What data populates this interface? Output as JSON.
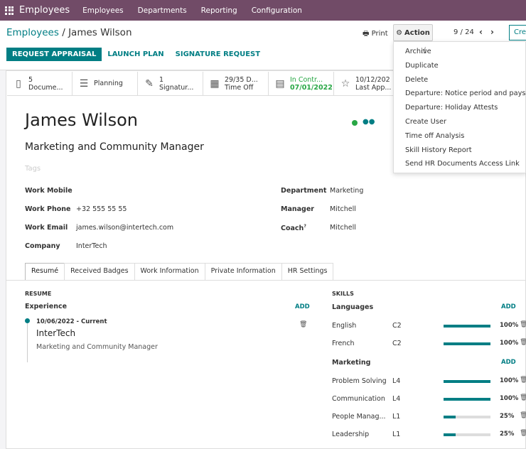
{
  "navbar": {
    "app_name": "Employees",
    "menus": [
      "Employees",
      "Departments",
      "Reporting",
      "Configuration"
    ]
  },
  "breadcrumb": {
    "parent": "Employees",
    "separator": "/",
    "current": "James Wilson"
  },
  "toolbar": {
    "print_label": "Print",
    "action_label": "Action",
    "pager": "9 / 24",
    "create_label": "Cre"
  },
  "buttons": {
    "request_appraisal": "REQUEST APPRAISAL",
    "launch_plan": "LAUNCH PLAN",
    "signature_request": "SIGNATURE REQUEST"
  },
  "smart_buttons": [
    {
      "icon": "document-icon",
      "line1": "5",
      "line2": "Docume..."
    },
    {
      "icon": "planning-icon",
      "line1": "Planning",
      "line2": ""
    },
    {
      "icon": "pen-icon",
      "line1": "1",
      "line2": "Signatur..."
    },
    {
      "icon": "calendar-icon",
      "line1": "29/35 D...",
      "line2": "Time Off"
    },
    {
      "icon": "book-icon",
      "line1": "In Contr...",
      "line2": "07/01/2022"
    },
    {
      "icon": "star-icon",
      "line1": "10/12/202",
      "line2": "Last App..."
    }
  ],
  "employee": {
    "name": "James Wilson",
    "job_title": "Marketing and Community Manager",
    "tags_placeholder": "Tags"
  },
  "fields": {
    "work_mobile_label": "Work Mobile",
    "work_mobile": "",
    "work_phone_label": "Work Phone",
    "work_phone": "+32 555 55 55",
    "work_email_label": "Work Email",
    "work_email": "james.wilson@intertech.com",
    "company_label": "Company",
    "company": "InterTech",
    "department_label": "Department",
    "department": "Marketing",
    "manager_label": "Manager",
    "manager": "Mitchell",
    "coach_label": "Coach",
    "coach": "Mitchell"
  },
  "tabs": [
    "Resumé",
    "Received Badges",
    "Work Information",
    "Private Information",
    "HR Settings"
  ],
  "resume": {
    "section": "RESUME",
    "subsection": "Experience",
    "add_label": "ADD",
    "entry": {
      "date": "10/06/2022 - Current",
      "title": "InterTech",
      "description": "Marketing and Community Manager"
    }
  },
  "skills": {
    "section": "SKILLS",
    "groups": [
      {
        "name": "Languages",
        "add_label": "ADD",
        "items": [
          {
            "name": "English",
            "level": "C2",
            "progress": 100,
            "percent": "100%"
          },
          {
            "name": "French",
            "level": "C2",
            "progress": 100,
            "percent": "100%"
          }
        ]
      },
      {
        "name": "Marketing",
        "add_label": "ADD",
        "items": [
          {
            "name": "Problem Solving",
            "level": "L4",
            "progress": 100,
            "percent": "100%"
          },
          {
            "name": "Communication",
            "level": "L4",
            "progress": 100,
            "percent": "100%"
          },
          {
            "name": "People Manag...",
            "level": "L1",
            "progress": 25,
            "percent": "25%"
          },
          {
            "name": "Leadership",
            "level": "L1",
            "progress": 25,
            "percent": "25%"
          }
        ]
      }
    ]
  },
  "action_menu": [
    "Archive",
    "Duplicate",
    "Delete",
    "Departure: Notice period and payslip",
    "Departure: Holiday Attests",
    "Create User",
    "Time off Analysis",
    "Skill History Report",
    "Send HR Documents Access Link"
  ],
  "colors": {
    "navbar": "#714b67",
    "accent": "#017e84",
    "status_green": "#28a745"
  }
}
